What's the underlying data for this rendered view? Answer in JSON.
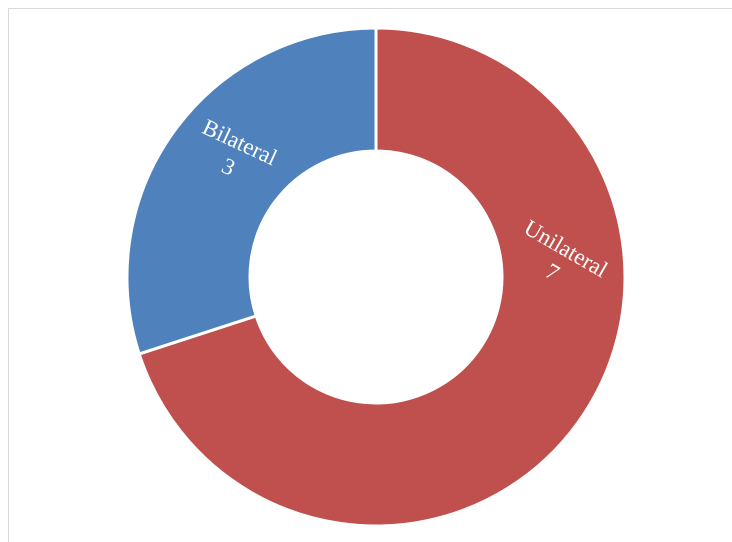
{
  "chart_data": {
    "type": "pie",
    "variant": "donut",
    "slices": [
      {
        "label": "Unilateral",
        "value": 7,
        "color": "#c0504d"
      },
      {
        "label": "Bilateral",
        "value": 3,
        "color": "#4f81bd"
      }
    ],
    "start": "12 o'clock",
    "direction": "clockwise",
    "legend": "none",
    "data_labels": "inside slices, category name and value"
  }
}
